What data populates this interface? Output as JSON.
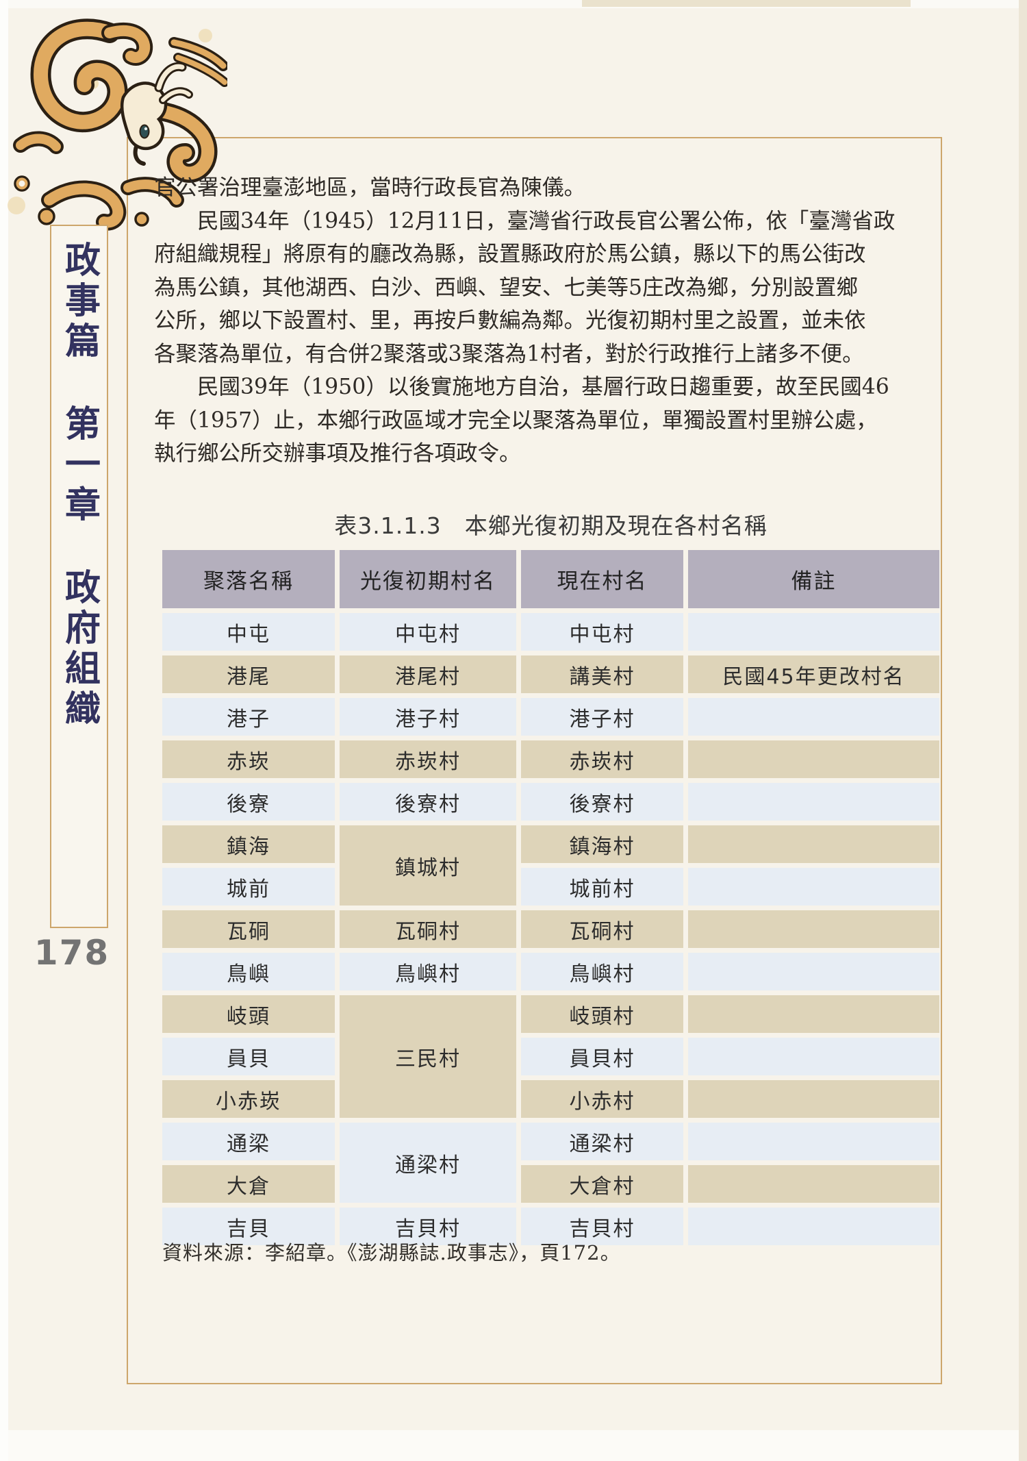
{
  "page_number": "178",
  "sidebar": {
    "part": "政事篇",
    "chapter": "第一章",
    "section": "政府組織"
  },
  "body": {
    "lines": [
      "官公署治理臺澎地區，當時行政長官為陳儀。",
      "　　民國34年（1945）12月11日，臺灣省行政長官公署公佈，依「臺灣省政",
      "府組織規程」將原有的廳改為縣，設置縣政府於馬公鎮，縣以下的馬公街改",
      "為馬公鎮，其他湖西、白沙、西嶼、望安、七美等5庄改為鄉，分別設置鄉",
      "公所，鄉以下設置村、里，再按戶數編為鄰。光復初期村里之設置，並未依",
      "各聚落為單位，有合併2聚落或3聚落為1村者，對於行政推行上諸多不便。",
      "　　民國39年（1950）以後實施地方自治，基層行政日趨重要，故至民國46",
      "年（1957）止，本鄉行政區域才完全以聚落為單位，單獨設置村里辦公處，",
      "執行鄉公所交辦事項及推行各項政令。"
    ]
  },
  "table": {
    "title": "表3.1.1.3　本鄉光復初期及現在各村名稱",
    "columns": [
      "聚落名稱",
      "光復初期村名",
      "現在村名",
      "備註"
    ],
    "rows": [
      {
        "settlement": "中屯",
        "early": "中屯村",
        "early_span": 1,
        "current": "中屯村",
        "note": "",
        "tone": "blue"
      },
      {
        "settlement": "港尾",
        "early": "港尾村",
        "early_span": 1,
        "current": "講美村",
        "note": "民國45年更改村名",
        "tone": "tan"
      },
      {
        "settlement": "港子",
        "early": "港子村",
        "early_span": 1,
        "current": "港子村",
        "note": "",
        "tone": "blue"
      },
      {
        "settlement": "赤崁",
        "early": "赤崁村",
        "early_span": 1,
        "current": "赤崁村",
        "note": "",
        "tone": "tan"
      },
      {
        "settlement": "後寮",
        "early": "後寮村",
        "early_span": 1,
        "current": "後寮村",
        "note": "",
        "tone": "blue"
      },
      {
        "settlement": "鎮海",
        "early": "鎮城村",
        "early_span": 2,
        "early_tone": "tan",
        "current": "鎮海村",
        "note": "",
        "tone": "tan"
      },
      {
        "settlement": "城前",
        "early": null,
        "current": "城前村",
        "note": "",
        "tone": "blue"
      },
      {
        "settlement": "瓦硐",
        "early": "瓦硐村",
        "early_span": 1,
        "current": "瓦硐村",
        "note": "",
        "tone": "tan"
      },
      {
        "settlement": "鳥嶼",
        "early": "鳥嶼村",
        "early_span": 1,
        "current": "鳥嶼村",
        "note": "",
        "tone": "blue"
      },
      {
        "settlement": "岐頭",
        "early": "三民村",
        "early_span": 3,
        "early_tone": "tan",
        "current": "岐頭村",
        "note": "",
        "tone": "tan"
      },
      {
        "settlement": "員貝",
        "early": null,
        "current": "員貝村",
        "note": "",
        "tone": "blue"
      },
      {
        "settlement": "小赤崁",
        "early": null,
        "current": "小赤村",
        "note": "",
        "tone": "tan"
      },
      {
        "settlement": "通梁",
        "early": "通梁村",
        "early_span": 2,
        "early_tone": "blue",
        "current": "通梁村",
        "note": "",
        "tone": "blue"
      },
      {
        "settlement": "大倉",
        "early": null,
        "current": "大倉村",
        "note": "",
        "tone": "tan"
      },
      {
        "settlement": "吉貝",
        "early": "吉貝村",
        "early_span": 1,
        "current": "吉貝村",
        "note": "",
        "tone": "blue"
      }
    ],
    "source": "資料來源：李紹章。《澎湖縣誌.政事志》，頁172。"
  },
  "colors": {
    "header_bg": "#b4afbd",
    "row_tan": "#ded4b9",
    "row_blue": "#e7edf4",
    "frame_border": "#cda66b",
    "sidebar_text": "#32325f",
    "dragon_tan": "#e0aa60",
    "dragon_outline": "#2b2014",
    "eye_teal": "#2f5053"
  }
}
